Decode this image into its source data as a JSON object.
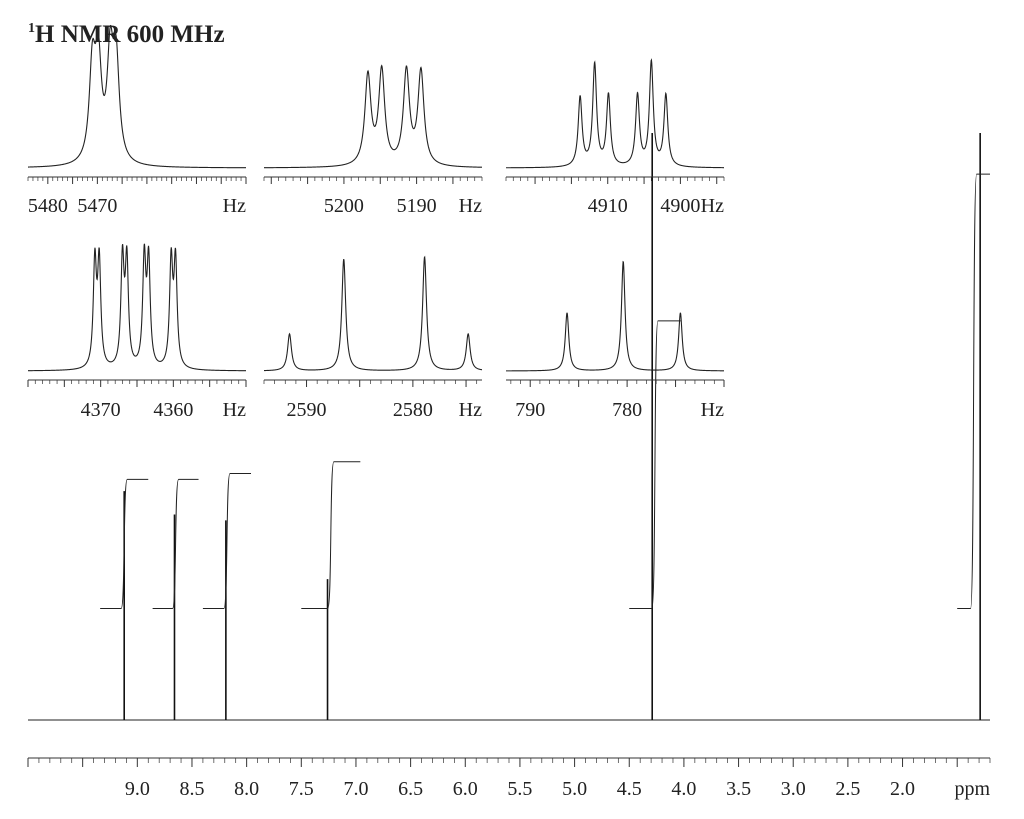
{
  "title": "H NMR 600 MHz",
  "title_superscript": "1",
  "chart_data": [
    {
      "type": "line",
      "id": "main-spectrum",
      "x_unit": "ppm",
      "xlim": [
        10.0,
        1.2
      ],
      "x_reversed": true,
      "x_ticks": [
        "9.0",
        "8.5",
        "8.0",
        "7.5",
        "7.0",
        "6.5",
        "6.0",
        "5.5",
        "5.0",
        "4.5",
        "4.0",
        "3.5",
        "3.0",
        "2.5",
        "2.0"
      ],
      "x_tick_values": [
        9.0,
        8.5,
        8.0,
        7.5,
        7.0,
        6.5,
        6.0,
        5.5,
        5.0,
        4.5,
        4.0,
        3.5,
        3.0,
        2.5,
        2.0
      ],
      "peaks": [
        {
          "ppm": 9.12,
          "height": 0.39
        },
        {
          "ppm": 8.66,
          "height": 0.35
        },
        {
          "ppm": 8.19,
          "height": 0.34
        },
        {
          "ppm": 7.26,
          "height": 0.24
        },
        {
          "ppm": 4.29,
          "height": 1.0
        },
        {
          "ppm": 1.29,
          "height": 1.0
        }
      ],
      "integrals": [
        {
          "from": 9.34,
          "to": 8.9,
          "low": 0.19,
          "high": 0.41
        },
        {
          "from": 8.86,
          "to": 8.44,
          "low": 0.19,
          "high": 0.41
        },
        {
          "from": 8.4,
          "to": 7.96,
          "low": 0.19,
          "high": 0.42
        },
        {
          "from": 7.5,
          "to": 6.96,
          "low": 0.19,
          "high": 0.44
        },
        {
          "from": 4.5,
          "to": 4.03,
          "low": 0.19,
          "high": 0.68
        },
        {
          "from": 1.5,
          "to": 1.2,
          "low": 0.19,
          "high": 0.93
        }
      ]
    },
    {
      "type": "line",
      "id": "inset-1",
      "x_unit": "Hz",
      "xlim": [
        5484,
        5440
      ],
      "x_ticks": [
        "5480",
        "5470"
      ],
      "x_tick_values": [
        5480,
        5470
      ],
      "peaks": [
        {
          "hz": 5471.0,
          "height": 0.92
        },
        {
          "hz": 5469.8,
          "height": 0.94
        },
        {
          "hz": 5467.4,
          "height": 1.0
        },
        {
          "hz": 5466.2,
          "height": 0.95
        }
      ],
      "width_hz": 0.75
    },
    {
      "type": "line",
      "id": "inset-2",
      "x_unit": "Hz",
      "xlim": [
        5211,
        5181
      ],
      "x_ticks": [
        "5200",
        "5190"
      ],
      "x_tick_values": [
        5200,
        5190
      ],
      "peaks": [
        {
          "hz": 5196.7,
          "height": 0.88
        },
        {
          "hz": 5194.8,
          "height": 0.92
        },
        {
          "hz": 5191.4,
          "height": 0.92
        },
        {
          "hz": 5189.4,
          "height": 0.92
        }
      ],
      "width_hz": 0.5
    },
    {
      "type": "line",
      "id": "inset-3",
      "x_unit": "Hz",
      "xlim": [
        4924,
        4894
      ],
      "x_ticks": [
        "4910",
        "4900"
      ],
      "x_tick_values": [
        4910,
        4900
      ],
      "peaks": [
        {
          "hz": 4913.8,
          "height": 0.68
        },
        {
          "hz": 4911.8,
          "height": 1.0
        },
        {
          "hz": 4909.9,
          "height": 0.7
        },
        {
          "hz": 4905.9,
          "height": 0.7
        },
        {
          "hz": 4904.0,
          "height": 1.02
        },
        {
          "hz": 4902.0,
          "height": 0.7
        }
      ],
      "width_hz": 0.32
    },
    {
      "type": "line",
      "id": "inset-4",
      "x_unit": "Hz",
      "xlim": [
        4380,
        4350
      ],
      "x_ticks": [
        "4370",
        "4360"
      ],
      "x_tick_values": [
        4370,
        4360
      ],
      "peaks": [
        {
          "hz": 4370.8,
          "height": 0.94
        },
        {
          "hz": 4370.2,
          "height": 0.94
        },
        {
          "hz": 4367.0,
          "height": 0.96
        },
        {
          "hz": 4366.4,
          "height": 0.94
        },
        {
          "hz": 4364.0,
          "height": 0.96
        },
        {
          "hz": 4363.4,
          "height": 0.94
        },
        {
          "hz": 4360.3,
          "height": 0.94
        },
        {
          "hz": 4359.7,
          "height": 0.94
        }
      ],
      "width_hz": 0.26
    },
    {
      "type": "line",
      "id": "inset-5",
      "x_unit": "Hz",
      "xlim": [
        2594,
        2573.5
      ],
      "x_ticks": [
        "2590",
        "2580"
      ],
      "x_tick_values": [
        2590,
        2580
      ],
      "peaks": [
        {
          "hz": 2591.6,
          "height": 0.33
        },
        {
          "hz": 2586.5,
          "height": 1.0
        },
        {
          "hz": 2578.9,
          "height": 1.02
        },
        {
          "hz": 2574.8,
          "height": 0.33
        }
      ],
      "width_hz": 0.22
    },
    {
      "type": "line",
      "id": "inset-6",
      "x_unit": "Hz",
      "xlim": [
        792.5,
        770
      ],
      "x_ticks": [
        "790",
        "780"
      ],
      "x_tick_values": [
        790,
        780
      ],
      "peaks": [
        {
          "hz": 786.2,
          "height": 0.52
        },
        {
          "hz": 780.4,
          "height": 0.98
        },
        {
          "hz": 774.5,
          "height": 0.52
        }
      ],
      "width_hz": 0.22
    }
  ],
  "insets_hz_label": "Hz",
  "main_axis_unit": "ppm"
}
